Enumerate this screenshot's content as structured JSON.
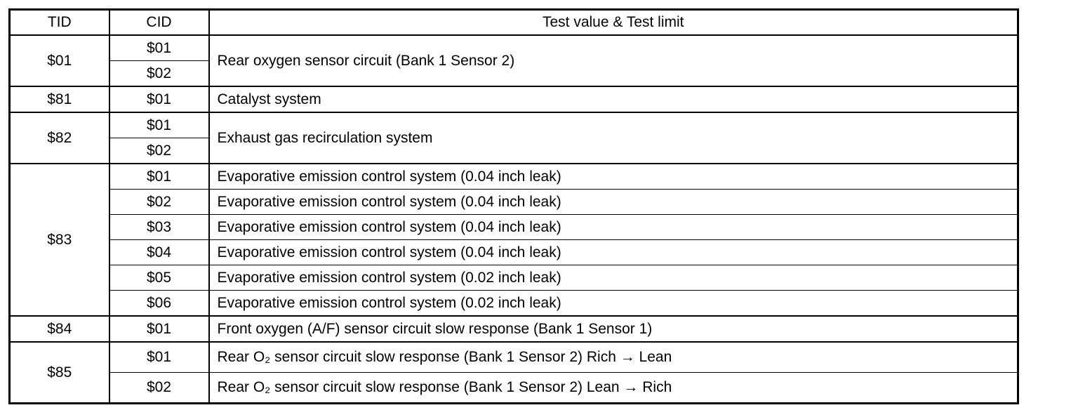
{
  "table": {
    "header": [
      "TID",
      "CID",
      "Test value & Test limit"
    ],
    "groups": [
      {
        "tid": "$01",
        "cids": [
          "$01",
          "$02"
        ],
        "descriptions": [
          "Rear oxygen sensor circuit (Bank 1 Sensor 2)"
        ]
      },
      {
        "tid": "$81",
        "cids": [
          "$01"
        ],
        "descriptions": [
          "Catalyst system"
        ]
      },
      {
        "tid": "$82",
        "cids": [
          "$01",
          "$02"
        ],
        "descriptions": [
          "Exhaust gas recirculation system"
        ]
      },
      {
        "tid": "$83",
        "cids": [
          "$01",
          "$02",
          "$03",
          "$04",
          "$05",
          "$06"
        ],
        "descriptions": [
          "Evaporative emission control system (0.04 inch leak)",
          "Evaporative emission control system (0.04 inch leak)",
          "Evaporative emission control system (0.04 inch leak)",
          "Evaporative emission control system (0.04 inch leak)",
          "Evaporative emission control system (0.02 inch leak)",
          "Evaporative emission control system (0.02 inch leak)"
        ]
      },
      {
        "tid": "$84",
        "cids": [
          "$01"
        ],
        "descriptions": [
          "Front oxygen (A/F) sensor circuit slow response (Bank 1 Sensor 1)"
        ]
      },
      {
        "tid": "$85",
        "cids": [
          "$01",
          "$02"
        ],
        "descriptions": [
          "Rear O₂ sensor circuit slow response (Bank 1 Sensor 2) Rich → Lean",
          "Rear O₂ sensor circuit slow response (Bank 1 Sensor 2) Lean → Rich"
        ]
      }
    ]
  }
}
